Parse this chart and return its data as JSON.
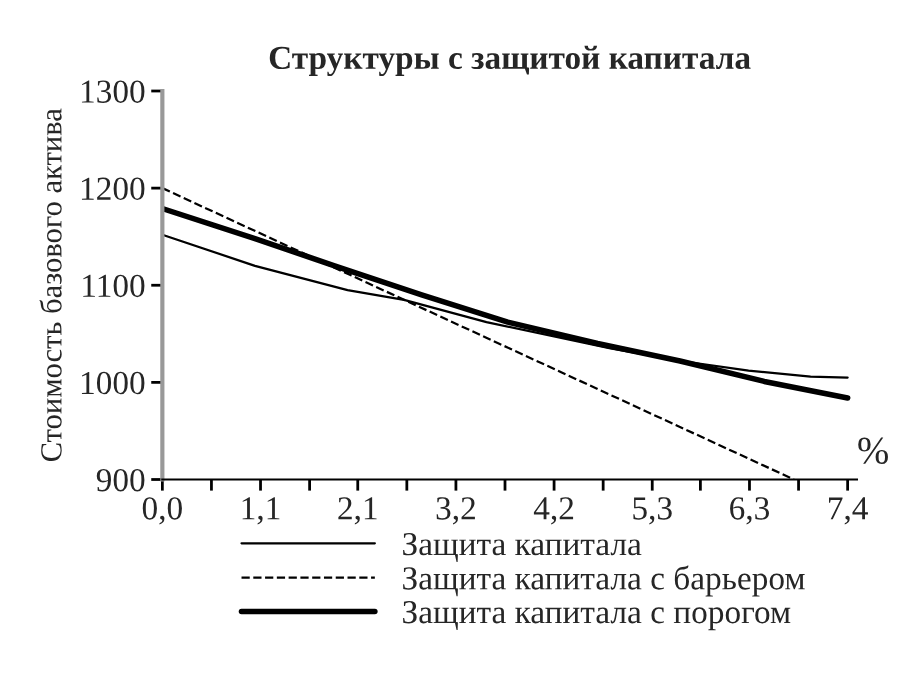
{
  "chart_data": {
    "type": "line",
    "title": "Структуры с защитой капитала",
    "ylabel": "Стоимость базового актива",
    "xlabel": "%",
    "xlim": [
      0,
      7.5
    ],
    "ylim": [
      900,
      1300
    ],
    "xticks": [
      {
        "value": 0,
        "label": "0,0"
      },
      {
        "value": 0.53,
        "label": null
      },
      {
        "value": 1.06,
        "label": "1,1"
      },
      {
        "value": 1.59,
        "label": null
      },
      {
        "value": 2.11,
        "label": "2,1"
      },
      {
        "value": 2.64,
        "label": null
      },
      {
        "value": 3.17,
        "label": "3,2"
      },
      {
        "value": 3.7,
        "label": null
      },
      {
        "value": 4.23,
        "label": "4,2"
      },
      {
        "value": 4.76,
        "label": null
      },
      {
        "value": 5.29,
        "label": "5,3"
      },
      {
        "value": 5.81,
        "label": null
      },
      {
        "value": 6.34,
        "label": "6,3"
      },
      {
        "value": 6.87,
        "label": null
      },
      {
        "value": 7.4,
        "label": "7,4"
      }
    ],
    "yticks": [
      900,
      1000,
      1100,
      1200,
      1300
    ],
    "grid": false,
    "legend": "bottom",
    "marker": "none",
    "series": [
      {
        "name": "Защита капитала",
        "color": "#000000",
        "line_style": "solid",
        "x": [
          0,
          1.0,
          2.0,
          2.61,
          3.5,
          4.84,
          5.6,
          6.33,
          7.0,
          7.4
        ],
        "values": [
          1152,
          1120,
          1095,
          1085,
          1062,
          1035,
          1022,
          1012,
          1006,
          1005
        ]
      },
      {
        "name": "Защита капитала с барьером",
        "color": "#000000",
        "line_style": "dashed",
        "x": [
          0,
          2.61,
          6.82
        ],
        "values": [
          1200,
          1085,
          900
        ]
      },
      {
        "name": "Защита капитала с порогом",
        "color": "#000000",
        "line_style": "solid",
        "x": [
          0,
          1.0,
          1.86,
          2.8,
          3.73,
          4.7,
          5.59,
          6.5,
          7.4
        ],
        "values": [
          1179,
          1148,
          1120,
          1090,
          1062,
          1040,
          1022,
          1001,
          984
        ]
      }
    ]
  }
}
